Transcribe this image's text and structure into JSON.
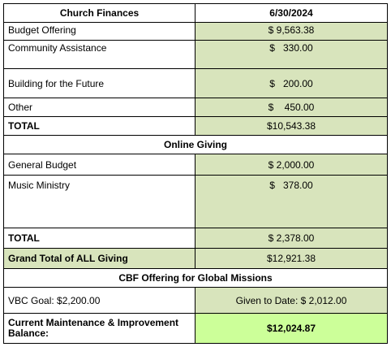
{
  "table": {
    "header": [
      "Church Finances",
      "6/30/2024"
    ],
    "rows": [
      [
        "Budget Offering",
        "$ 9,563.38"
      ],
      [
        "Community Assistance",
        "$   330.00"
      ],
      [
        "Building for the Future",
        "$   200.00"
      ],
      [
        "Other",
        "$    450.00"
      ],
      [
        "TOTAL",
        "$10,543.38"
      ]
    ],
    "online_heading": "Online Giving",
    "online_rows": [
      [
        "General Budget",
        "$ 2,000.00"
      ],
      [
        "Music Ministry",
        "$   378.00"
      ],
      [
        "TOTAL",
        "$ 2,378.00"
      ]
    ],
    "grand_total": [
      "Grand Total of ALL Giving",
      "$12,921.38"
    ],
    "cbf_heading": "CBF Offering for Global Missions",
    "cbf_row": [
      "VBC Goal: $2,200.00",
      "Given to Date: $ 2,012.00"
    ],
    "balance": [
      "Current Maintenance & Improvement Balance:",
      "$12,024.87"
    ]
  }
}
